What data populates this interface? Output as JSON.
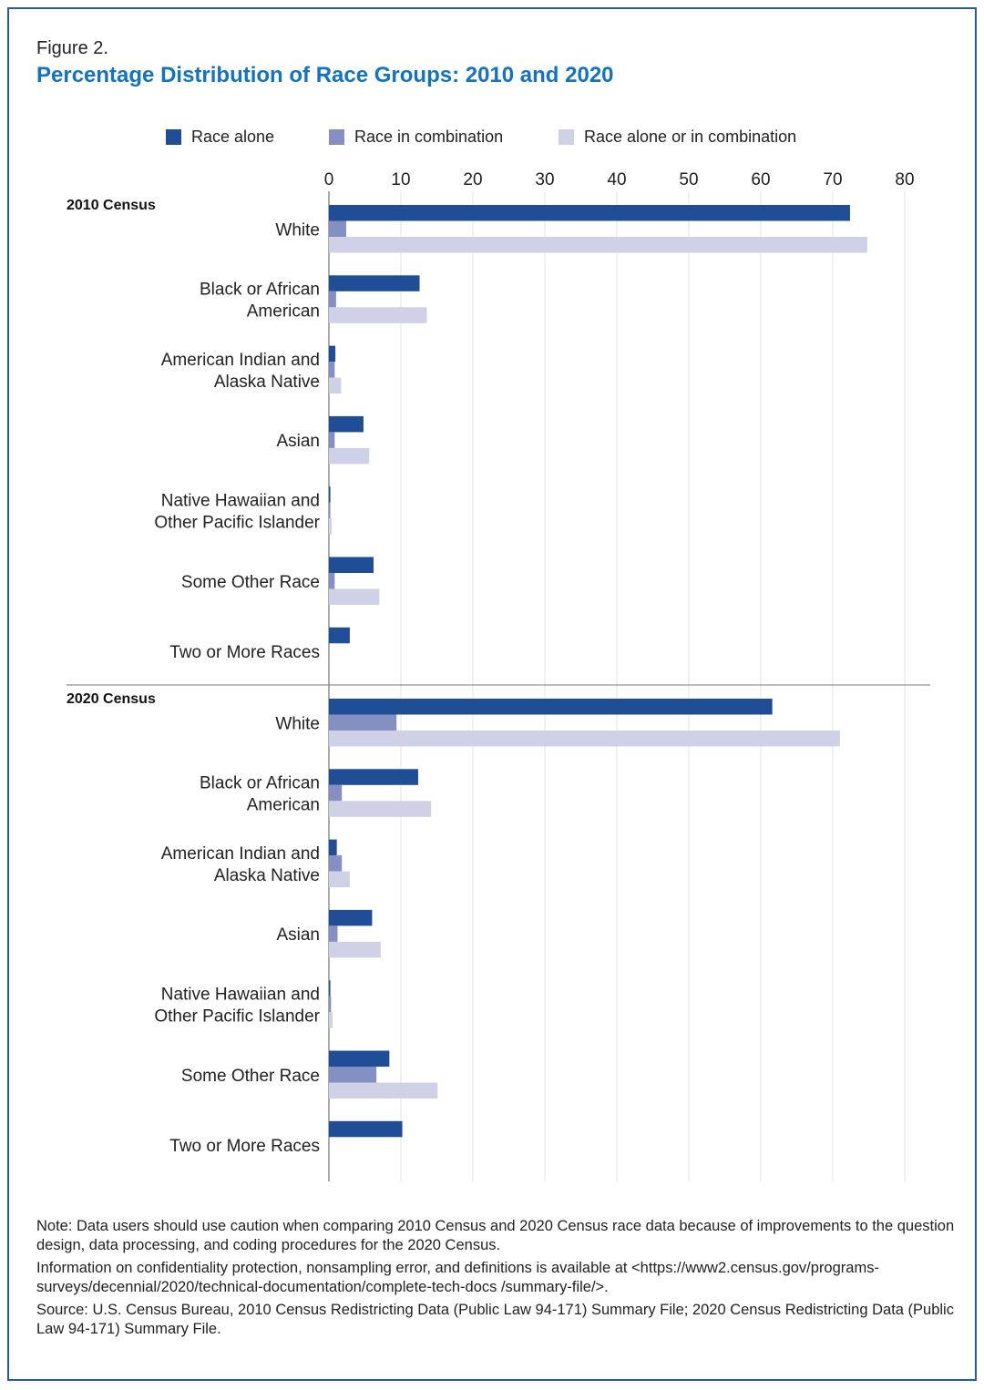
{
  "figure_label": "Figure 2.",
  "title": "Percentage Distribution of Race Groups: 2010 and 2020",
  "colors": {
    "race_alone": "#1f4e96",
    "race_in_combination": "#8590c2",
    "race_alone_or_in_combination": "#cfd1e6",
    "title": "#1273c4",
    "frame": "#2b5a9e"
  },
  "legend": [
    {
      "label": "Race alone",
      "color": "#1f4e96"
    },
    {
      "label": "Race in combination",
      "color": "#8590c2"
    },
    {
      "label": "Race alone or in combination",
      "color": "#cfd1e6"
    }
  ],
  "chart_data": {
    "type": "bar",
    "orientation": "horizontal",
    "title": "Percentage Distribution of Race Groups: 2010 and 2020",
    "xlim": [
      0,
      80
    ],
    "xticks": [
      0,
      10,
      20,
      30,
      40,
      50,
      60,
      70,
      80
    ],
    "grid": true,
    "legend_position": "top",
    "series_names": [
      "Race alone",
      "Race in combination",
      "Race alone or in combination"
    ],
    "groups": [
      {
        "label": "2010 Census",
        "categories": [
          {
            "label": [
              "White"
            ],
            "values": [
              72.4,
              2.4,
              74.8
            ]
          },
          {
            "label": [
              "Black or African",
              "American"
            ],
            "values": [
              12.6,
              1.0,
              13.6
            ]
          },
          {
            "label": [
              "American Indian and",
              "Alaska Native"
            ],
            "values": [
              0.9,
              0.8,
              1.7
            ]
          },
          {
            "label": [
              "Asian"
            ],
            "values": [
              4.8,
              0.8,
              5.6
            ]
          },
          {
            "label": [
              "Native Hawaiian and",
              "Other Pacific Islander"
            ],
            "values": [
              0.2,
              0.2,
              0.4
            ]
          },
          {
            "label": [
              "Some Other Race"
            ],
            "values": [
              6.2,
              0.8,
              7.0
            ]
          },
          {
            "label": [
              "Two or More Races"
            ],
            "values": [
              2.9,
              null,
              null
            ]
          }
        ]
      },
      {
        "label": "2020 Census",
        "categories": [
          {
            "label": [
              "White"
            ],
            "values": [
              61.6,
              9.4,
              71.0
            ]
          },
          {
            "label": [
              "Black or African",
              "American"
            ],
            "values": [
              12.4,
              1.8,
              14.2
            ]
          },
          {
            "label": [
              "American Indian and",
              "Alaska Native"
            ],
            "values": [
              1.1,
              1.8,
              2.9
            ]
          },
          {
            "label": [
              "Asian"
            ],
            "values": [
              6.0,
              1.2,
              7.2
            ]
          },
          {
            "label": [
              "Native Hawaiian and",
              "Other Pacific Islander"
            ],
            "values": [
              0.2,
              0.3,
              0.5
            ]
          },
          {
            "label": [
              "Some Other Race"
            ],
            "values": [
              8.4,
              6.6,
              15.1
            ]
          },
          {
            "label": [
              "Two or More Races"
            ],
            "values": [
              10.2,
              null,
              null
            ]
          }
        ]
      }
    ]
  },
  "notes": {
    "note": "Note: Data users should use caution when comparing 2010 Census and 2020 Census race data because of improvements to the question design, data processing, and coding procedures for the 2020 Census.",
    "info": "Information on confidentiality protection, nonsampling error, and definitions is available at <https://www2.census.gov/programs-surveys/decennial/2020/technical-documentation/complete-tech-docs /summary-file/>.",
    "source": "Source: U.S. Census Bureau, 2010 Census Redistricting Data (Public Law 94-171) Summary File; 2020 Census Redistricting Data (Public Law 94-171) Summary File."
  }
}
